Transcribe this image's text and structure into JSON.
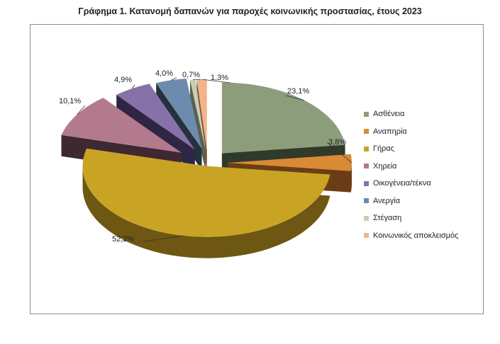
{
  "title": "Γράφημα 1. Κατανομή δαπανών για παροχές κοινωνικής προστασίας, έτους 2023",
  "chart_data": {
    "type": "pie",
    "title": "Γράφημα 1. Κατανομή δαπανών για παροχές κοινωνικής προστασίας, έτους 2023",
    "style": "3d-exploded",
    "legend_position": "right",
    "slices": [
      {
        "name": "Ασθένεια",
        "value": 23.1,
        "label": "23,1%",
        "color": "#8c9d7c",
        "side": "#2f3a2b"
      },
      {
        "name": "Αναπηρία",
        "value": 3.8,
        "label": "3,8%",
        "color": "#d98a35",
        "side": "#6b3d17"
      },
      {
        "name": "Γήρας",
        "value": 52.2,
        "label": "52,2%",
        "color": "#c9a323",
        "side": "#6e5712"
      },
      {
        "name": "Χηρεία",
        "value": 10.1,
        "label": "10,1%",
        "color": "#b37a8d",
        "side": "#3e2832"
      },
      {
        "name": "Οικογένεια/τέκνα",
        "value": 4.9,
        "label": "4,9%",
        "color": "#8672a8",
        "side": "#2f2545"
      },
      {
        "name": "Ανεργία",
        "value": 4.0,
        "label": "4,0%",
        "color": "#6d8cad",
        "side": "#24323f"
      },
      {
        "name": "Στέγαση",
        "value": 0.7,
        "label": "0,7%",
        "color": "#c6cfb2",
        "side": "#5c604f"
      },
      {
        "name": "Κοινωνικός αποκλεισμός",
        "value": 1.3,
        "label": "1,3%",
        "color": "#f4b48a",
        "side": "#7a5036"
      }
    ]
  }
}
